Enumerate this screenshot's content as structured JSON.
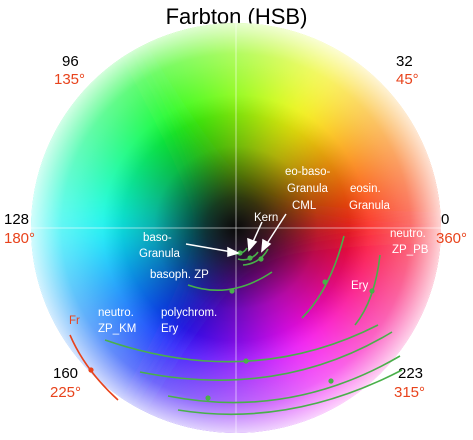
{
  "title": "Farbton (HSB)",
  "compass": [
    {
      "id": "top-left",
      "value": "96",
      "angle": "135°"
    },
    {
      "id": "top-right",
      "value": "32",
      "angle": "45°"
    },
    {
      "id": "left",
      "value": "128",
      "angle": "180°"
    },
    {
      "id": "right",
      "value": "0",
      "angle": "360°"
    },
    {
      "id": "bottom-left",
      "value": "160",
      "angle": "225°"
    },
    {
      "id": "bottom-right",
      "value": "223",
      "angle": "315°"
    }
  ],
  "annotations": {
    "baso_granula": [
      "baso-",
      "Granula"
    ],
    "kern": "Kern",
    "eo_baso": [
      "eo-baso-",
      "Granula",
      "CML"
    ],
    "eosin": [
      "eosin.",
      "Granula"
    ],
    "neutro_pb": [
      "neutro.",
      "ZP_PB"
    ],
    "basoph_zp": "basoph. ZP",
    "ery": "Ery",
    "fr": "Fr",
    "neutro_km": [
      "neutro.",
      "ZP_KM"
    ],
    "polychrom": [
      "polychrom.",
      "Ery"
    ]
  },
  "colors": {
    "arc": "#49b04a",
    "fr_arc": "#e8431c",
    "degree_text": "#e8431c"
  }
}
